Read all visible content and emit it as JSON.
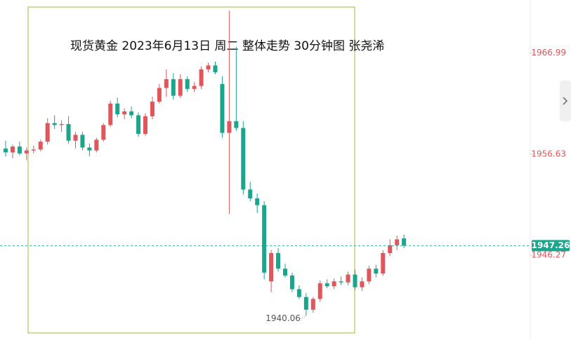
{
  "chart_data": {
    "type": "candlestick",
    "title": "现货黄金 2023年6月13日 周二  整体走势 30分钟图  张尧浠",
    "up_color": "#e0565b",
    "down_color": "#1aa58c",
    "ylim": [
      1937.6,
      1972.4
    ],
    "yticks": [
      1946.27,
      1956.63,
      1966.99
    ],
    "current_price": 1947.26,
    "low_annotation": 1940.06,
    "candles": [
      [
        1957.2,
        1958.0,
        1956.4,
        1956.8
      ],
      [
        1956.8,
        1957.6,
        1956.2,
        1957.4
      ],
      [
        1957.4,
        1957.9,
        1956.5,
        1956.7
      ],
      [
        1956.7,
        1957.3,
        1956.0,
        1957.0
      ],
      [
        1957.0,
        1957.5,
        1956.7,
        1957.1
      ],
      [
        1957.1,
        1958.1,
        1956.9,
        1957.9
      ],
      [
        1957.9,
        1960.3,
        1957.6,
        1959.8
      ],
      [
        1959.8,
        1960.6,
        1959.2,
        1959.6
      ],
      [
        1959.6,
        1960.1,
        1958.9,
        1959.7
      ],
      [
        1959.7,
        1960.5,
        1957.7,
        1958.0
      ],
      [
        1958.0,
        1958.9,
        1957.2,
        1958.6
      ],
      [
        1958.6,
        1958.9,
        1957.0,
        1957.3
      ],
      [
        1957.3,
        1957.7,
        1956.4,
        1957.0
      ],
      [
        1957.0,
        1958.3,
        1956.8,
        1958.1
      ],
      [
        1958.1,
        1959.8,
        1957.9,
        1959.6
      ],
      [
        1959.6,
        1962.1,
        1959.4,
        1961.8
      ],
      [
        1961.8,
        1962.4,
        1960.4,
        1960.7
      ],
      [
        1960.7,
        1961.3,
        1960.2,
        1961.0
      ],
      [
        1961.0,
        1961.5,
        1960.3,
        1960.6
      ],
      [
        1960.6,
        1960.9,
        1958.4,
        1958.7
      ],
      [
        1958.7,
        1960.8,
        1958.5,
        1960.5
      ],
      [
        1960.5,
        1962.5,
        1960.2,
        1962.0
      ],
      [
        1962.0,
        1963.8,
        1961.8,
        1963.4
      ],
      [
        1963.4,
        1965.3,
        1962.5,
        1964.3
      ],
      [
        1964.3,
        1964.9,
        1962.2,
        1962.6
      ],
      [
        1962.6,
        1964.8,
        1962.4,
        1964.3
      ],
      [
        1964.3,
        1964.6,
        1963.0,
        1963.3
      ],
      [
        1963.3,
        1964.0,
        1963.0,
        1963.6
      ],
      [
        1963.6,
        1965.6,
        1963.3,
        1965.3
      ],
      [
        1965.3,
        1966.0,
        1965.0,
        1965.7
      ],
      [
        1965.7,
        1966.1,
        1964.8,
        1965.0
      ],
      [
        1963.8,
        1964.6,
        1958.3,
        1958.8
      ],
      [
        1958.8,
        1971.3,
        1950.5,
        1960.0
      ],
      [
        1960.0,
        1967.6,
        1959.0,
        1959.3
      ],
      [
        1959.3,
        1960.0,
        1952.5,
        1953.0
      ],
      [
        1953.0,
        1953.8,
        1951.8,
        1952.1
      ],
      [
        1952.1,
        1952.6,
        1950.6,
        1951.4
      ],
      [
        1951.4,
        1951.8,
        1943.8,
        1944.5
      ],
      [
        1943.6,
        1946.8,
        1942.5,
        1946.5
      ],
      [
        1946.5,
        1947.0,
        1944.6,
        1944.9
      ],
      [
        1944.9,
        1945.4,
        1944.0,
        1944.2
      ],
      [
        1944.2,
        1944.5,
        1942.5,
        1942.8
      ],
      [
        1942.8,
        1943.2,
        1941.8,
        1942.0
      ],
      [
        1942.0,
        1942.4,
        1940.06,
        1940.7
      ],
      [
        1940.7,
        1942.0,
        1940.4,
        1941.8
      ],
      [
        1941.8,
        1943.7,
        1941.5,
        1943.4
      ],
      [
        1943.4,
        1943.8,
        1942.9,
        1943.1
      ],
      [
        1943.1,
        1943.9,
        1942.8,
        1943.6
      ],
      [
        1943.6,
        1944.1,
        1943.2,
        1943.5
      ],
      [
        1943.5,
        1944.6,
        1943.2,
        1944.3
      ],
      [
        1944.3,
        1944.8,
        1942.7,
        1943.0
      ],
      [
        1943.0,
        1944.0,
        1942.6,
        1943.6
      ],
      [
        1943.6,
        1945.2,
        1943.3,
        1944.9
      ],
      [
        1944.9,
        1945.3,
        1944.0,
        1944.4
      ],
      [
        1944.4,
        1946.8,
        1944.2,
        1946.5
      ],
      [
        1946.5,
        1947.9,
        1946.2,
        1947.3
      ],
      [
        1947.3,
        1948.3,
        1946.8,
        1947.9
      ],
      [
        1948.0,
        1948.4,
        1947.0,
        1947.26
      ]
    ]
  }
}
